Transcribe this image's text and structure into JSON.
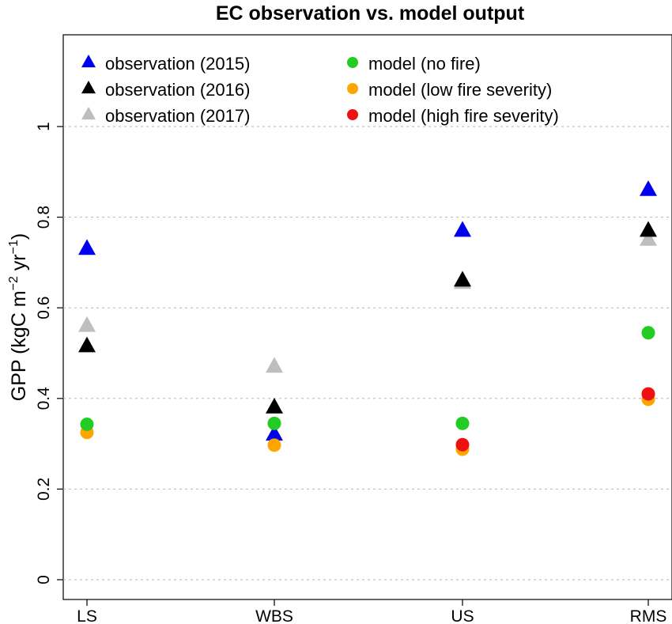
{
  "chart_data": {
    "type": "scatter",
    "title": "EC observation vs. model output",
    "xlabel": "",
    "ylabel": {
      "main": "GPP (kgC m",
      "exp1": "−2",
      "mid": " yr",
      "exp2": "−1",
      "end": ")"
    },
    "categories": [
      "LS",
      "WBS",
      "US",
      "RMS"
    ],
    "ylim": [
      0,
      1.05
    ],
    "yticks": [
      0,
      0.2,
      0.4,
      0.6,
      0.8,
      1.0
    ],
    "ytick_labels": [
      "0",
      "0.2",
      "0.4",
      "0.6",
      "0.8",
      "1"
    ],
    "grid": true,
    "legend_position": "top",
    "series": [
      {
        "name": "observation (2015)",
        "marker": "triangle",
        "color": "#0000ee",
        "values": [
          0.73,
          0.32,
          0.77,
          0.86
        ]
      },
      {
        "name": "observation (2016)",
        "marker": "triangle",
        "color": "#000000",
        "values": [
          0.515,
          0.38,
          0.66,
          0.77
        ]
      },
      {
        "name": "observation (2017)",
        "marker": "triangle",
        "color": "#bebebe",
        "values": [
          0.56,
          0.47,
          0.655,
          0.75
        ]
      },
      {
        "name": "model (no fire)",
        "marker": "circle",
        "color": "#22cc22",
        "values": [
          0.343,
          0.345,
          0.345,
          0.545
        ]
      },
      {
        "name": "model (low fire severity)",
        "marker": "circle",
        "color": "#ffa500",
        "values": [
          0.325,
          0.297,
          0.288,
          0.398
        ]
      },
      {
        "name": "model (high fire severity)",
        "marker": "circle",
        "color": "#ee1111",
        "values": [
          null,
          null,
          0.298,
          0.41
        ]
      }
    ]
  }
}
